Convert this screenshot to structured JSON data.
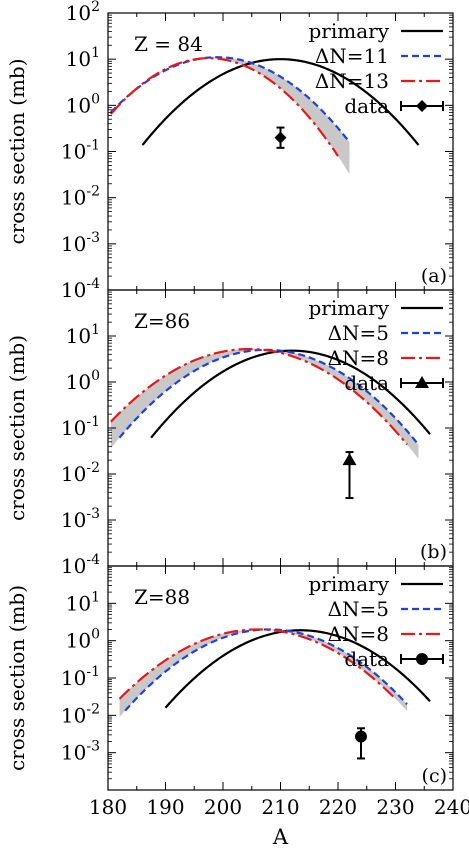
{
  "figure": {
    "xlabel": "A",
    "x_ticks": [
      "180",
      "190",
      "200",
      "210",
      "220",
      "230",
      "240"
    ],
    "ylabel": "cross section (mb)"
  },
  "chart_data": [
    {
      "type": "line",
      "panel_label": "(a)",
      "z_label": "Z = 84",
      "xlim": [
        180,
        240
      ],
      "ylim": [
        0.0001,
        100
      ],
      "y_scale": "log",
      "y_ticks": [
        {
          "base": "10",
          "exp": "2"
        },
        {
          "base": "10",
          "exp": "1"
        },
        {
          "base": "10",
          "exp": "0"
        },
        {
          "base": "10",
          "exp": "-1"
        },
        {
          "base": "10",
          "exp": "-2"
        },
        {
          "base": "10",
          "exp": "-3"
        },
        {
          "base": "10",
          "exp": "-4"
        }
      ],
      "legend_position": "top-right",
      "series": [
        {
          "name": "primary",
          "style": "solid",
          "color": "#000000",
          "mu": 210,
          "sigma": 8.2,
          "peak": 10,
          "x_range": [
            186,
            234
          ]
        },
        {
          "name": "ΔN=11",
          "style": "dashed",
          "color": "#1f3fe6",
          "mu": 199,
          "sigma": 7.9,
          "peak": 11,
          "x_range": [
            180.5,
            222
          ]
        },
        {
          "name": "ΔN=13",
          "style": "dashdot",
          "color": "#e61919",
          "mu": 197.5,
          "sigma": 7.2,
          "peak": 10.5,
          "x_range": [
            180.5,
            220
          ]
        }
      ],
      "band": {
        "color": "#c8c8c8",
        "between": [
          "ΔN=11",
          "ΔN=13"
        ]
      },
      "data": {
        "name": "data",
        "marker": "diamond",
        "x": 210,
        "y": 0.2,
        "y_err_low": 0.12,
        "y_err_high": 0.33,
        "x_err": 0.5
      }
    },
    {
      "type": "line",
      "panel_label": "(b)",
      "z_label": "Z=86",
      "xlim": [
        180,
        240
      ],
      "ylim": [
        0.0001,
        100
      ],
      "y_scale": "log",
      "y_ticks": [
        {
          "base": "",
          "exp": ""
        },
        {
          "base": "10",
          "exp": "1"
        },
        {
          "base": "10",
          "exp": "0"
        },
        {
          "base": "10",
          "exp": "-1"
        },
        {
          "base": "10",
          "exp": "-2"
        },
        {
          "base": "10",
          "exp": "-3"
        },
        {
          "base": "10",
          "exp": "-4"
        }
      ],
      "legend_position": "top-right",
      "series": [
        {
          "name": "primary",
          "style": "solid",
          "color": "#000000",
          "mu": 212,
          "sigma": 8.3,
          "peak": 4.8,
          "x_range": [
            187.5,
            236
          ]
        },
        {
          "name": "ΔN=5",
          "style": "dashed",
          "color": "#1f3fe6",
          "mu": 207.5,
          "sigma": 8.6,
          "peak": 5,
          "x_range": [
            182,
            234
          ]
        },
        {
          "name": "ΔN=8",
          "style": "dashdot",
          "color": "#e61919",
          "mu": 204.5,
          "sigma": 8.9,
          "peak": 5.2,
          "x_range": [
            180.5,
            232
          ]
        }
      ],
      "band": {
        "color": "#c8c8c8",
        "between": [
          "ΔN=5",
          "ΔN=8"
        ]
      },
      "data": {
        "name": "data",
        "marker": "triangle",
        "x": 222,
        "y": 0.02,
        "y_err_low": 0.003,
        "y_err_high": 0.03,
        "x_err": 0.5
      }
    },
    {
      "type": "line",
      "panel_label": "(c)",
      "z_label": "Z=88",
      "xlim": [
        180,
        240
      ],
      "ylim": [
        0.0001,
        100
      ],
      "y_scale": "log",
      "y_ticks": [
        {
          "base": "",
          "exp": ""
        },
        {
          "base": "10",
          "exp": "1"
        },
        {
          "base": "10",
          "exp": "0"
        },
        {
          "base": "10",
          "exp": "-1"
        },
        {
          "base": "10",
          "exp": "-2"
        },
        {
          "base": "10",
          "exp": "-3"
        },
        {
          "base": "",
          "exp": ""
        }
      ],
      "legend_position": "top-right",
      "series": [
        {
          "name": "primary",
          "style": "solid",
          "color": "#000000",
          "mu": 213.5,
          "sigma": 7.6,
          "peak": 1.9,
          "x_range": [
            190,
            236
          ]
        },
        {
          "name": "ΔN=5",
          "style": "dashed",
          "color": "#1f3fe6",
          "mu": 208,
          "sigma": 7.9,
          "peak": 2.0,
          "x_range": [
            183,
            232
          ]
        },
        {
          "name": "ΔN=8",
          "style": "dashdot",
          "color": "#e61919",
          "mu": 206,
          "sigma": 8.2,
          "peak": 2.0,
          "x_range": [
            182,
            230
          ]
        }
      ],
      "band": {
        "color": "#c8c8c8",
        "between": [
          "ΔN=5",
          "ΔN=8"
        ]
      },
      "data": {
        "name": "data",
        "marker": "circle",
        "x": 224,
        "y": 0.0027,
        "y_err_low": 0.0007,
        "y_err_high": 0.0045,
        "x_err": 0.5
      }
    }
  ]
}
